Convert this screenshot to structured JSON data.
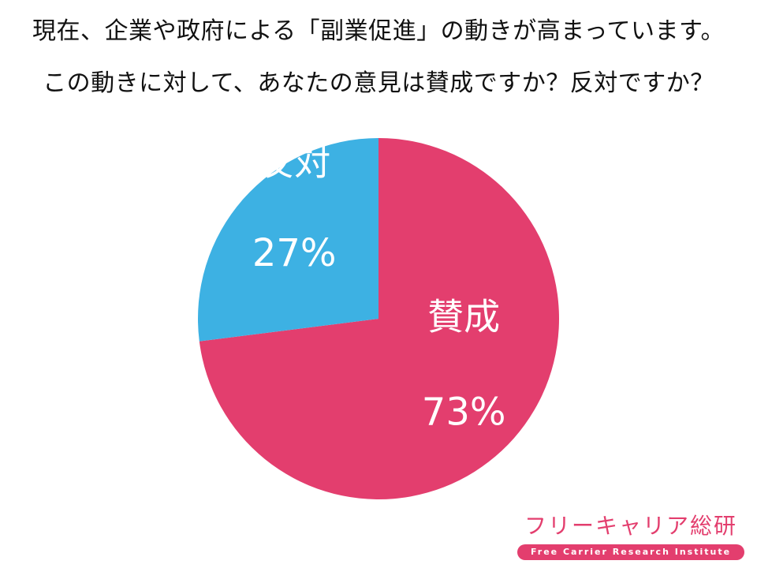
{
  "title_lines": [
    "現在、企業や政府による「副業促進」の動きが高まっています。",
    "この動きに対して、あなたの意見は賛成ですか？反対ですか？"
  ],
  "chart_data": {
    "type": "pie",
    "slices": [
      {
        "label": "賛成",
        "value": 73,
        "value_label": "73%",
        "color": "#e33e6e"
      },
      {
        "label": "反対",
        "value": 27,
        "value_label": "27%",
        "color": "#3db1e3"
      }
    ],
    "start": "12 o'clock",
    "direction": "clockwise",
    "legend": "none"
  },
  "logo": {
    "name": "フリーキャリア総研",
    "tagline": "Free Carrier Research Institute",
    "color": "#e33e6e"
  }
}
